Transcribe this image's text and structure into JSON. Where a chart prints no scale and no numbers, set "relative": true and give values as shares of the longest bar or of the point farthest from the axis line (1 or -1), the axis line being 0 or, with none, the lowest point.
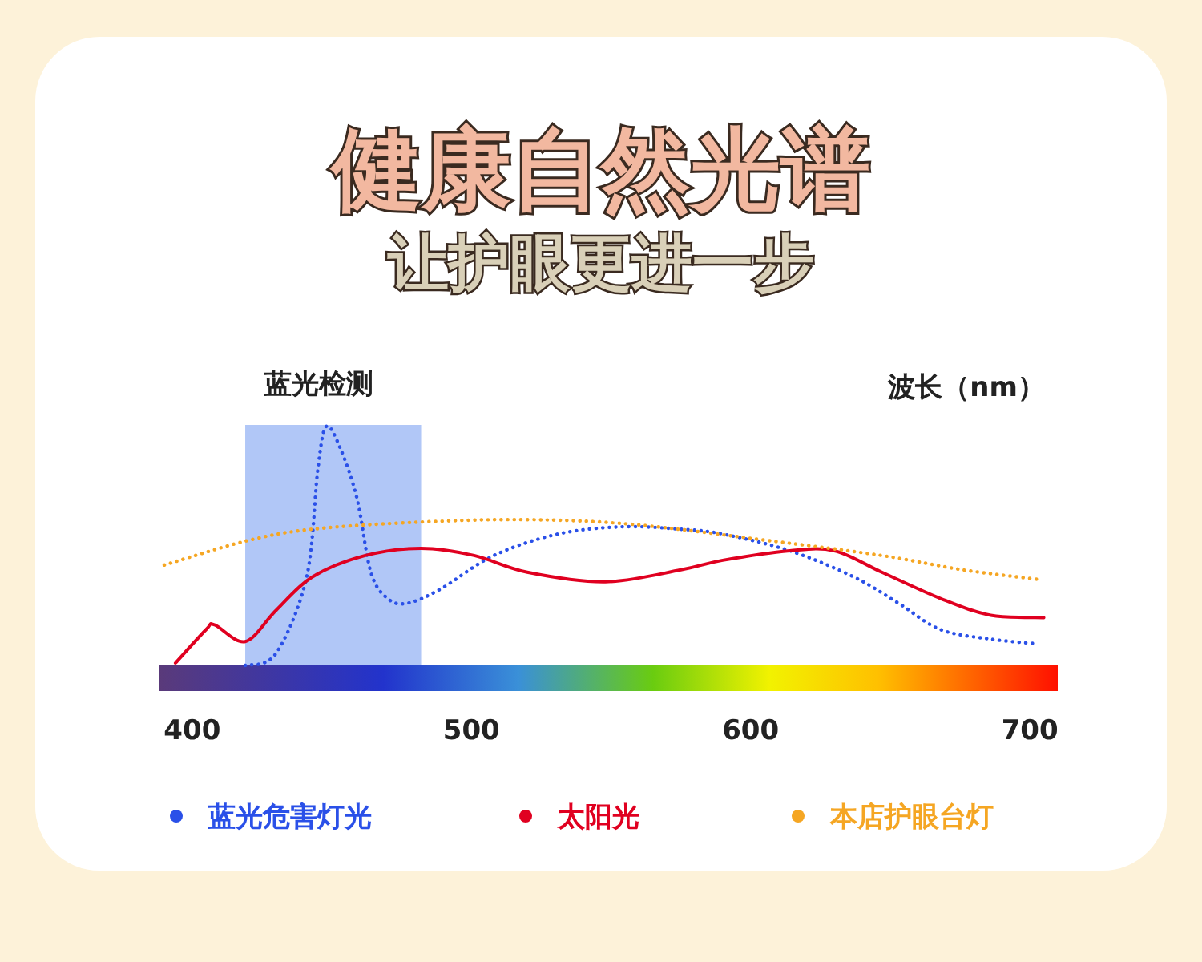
{
  "chart_data": {
    "type": "line",
    "title": "健康自然光谱",
    "subtitle": "让护眼更进一步",
    "xlabel": "波长（nm）",
    "relative": true,
    "xlim": [
      388,
      710
    ],
    "xticks": [
      400,
      500,
      600,
      700
    ],
    "legend": "bottom",
    "bands": [
      {
        "axis": "x",
        "from": 419,
        "to": 482,
        "label": "蓝光检测",
        "color": "#a9c1f6"
      }
    ],
    "series": [
      {
        "name": "蓝光危害灯光",
        "color": "#2a50e8",
        "line_style": "dotted",
        "x": [
          419,
          430,
          441,
          445,
          448,
          453,
          459,
          464,
          470,
          477,
          489,
          508,
          531,
          554,
          575,
          590,
          614,
          637,
          653,
          668,
          686,
          703
        ],
        "values": [
          0,
          0.05,
          0.37,
          0.82,
          1.0,
          0.91,
          0.7,
          0.39,
          0.28,
          0.26,
          0.32,
          0.46,
          0.55,
          0.58,
          0.57,
          0.55,
          0.48,
          0.37,
          0.26,
          0.15,
          0.11,
          0.09
        ]
      },
      {
        "name": "太阳光",
        "color": "#e00020",
        "line_style": "solid",
        "x": [
          394,
          405,
          408,
          419,
          430,
          443,
          462,
          482,
          501,
          520,
          548,
          575,
          590,
          614,
          630,
          647,
          668,
          686,
          705
        ],
        "values": [
          0.01,
          0.15,
          0.17,
          0.1,
          0.23,
          0.37,
          0.46,
          0.49,
          0.46,
          0.39,
          0.35,
          0.4,
          0.44,
          0.48,
          0.48,
          0.39,
          0.28,
          0.21,
          0.2
        ]
      },
      {
        "name": "本店护眼台灯",
        "color": "#f5a623",
        "line_style": "dotted",
        "x": [
          390,
          419,
          443,
          482,
          520,
          558,
          608,
          647,
          676,
          703
        ],
        "values": [
          0.42,
          0.52,
          0.57,
          0.6,
          0.61,
          0.59,
          0.52,
          0.46,
          0.4,
          0.36
        ]
      }
    ]
  }
}
